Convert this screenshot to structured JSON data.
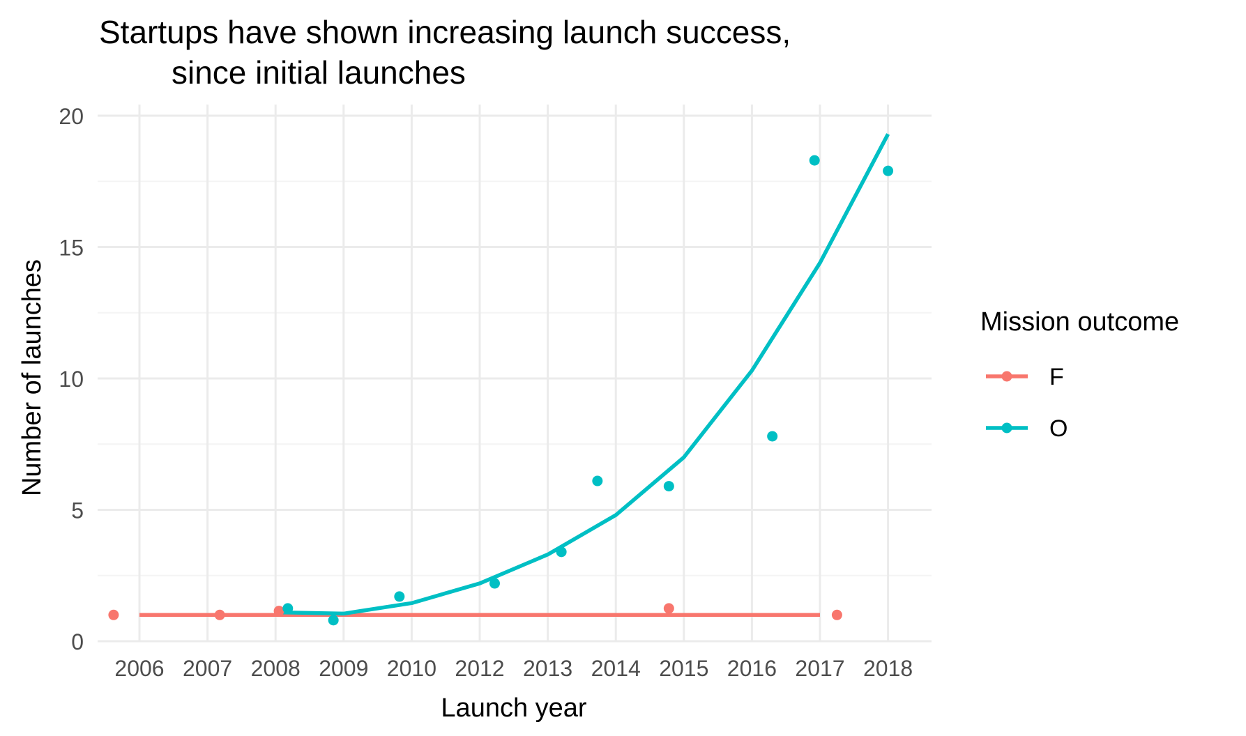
{
  "colors": {
    "background": "#ffffff",
    "grid_major": "#ebebeb",
    "grid_minor": "#f4f4f4",
    "tick_text": "#4d4d4d",
    "text": "#000000"
  },
  "chart_data": {
    "type": "scatter",
    "title_lines": [
      "Startups have shown increasing launch success,",
      "since initial launches"
    ],
    "xlabel": "Launch year",
    "ylabel": "Number of launches",
    "x_categories": [
      "2006",
      "2007",
      "2008",
      "2009",
      "2010",
      "2012",
      "2013",
      "2014",
      "2015",
      "2016",
      "2017",
      "2018"
    ],
    "ylim": [
      0,
      20
    ],
    "y_ticks": [
      0,
      5,
      10,
      15,
      20
    ],
    "grid": true,
    "legend": {
      "title": "Mission outcome",
      "position": "right"
    },
    "series": [
      {
        "name": "F",
        "color": "#F8766D",
        "points": [
          {
            "x": "2006",
            "jitter": -0.38,
            "y": 1.0
          },
          {
            "x": "2007",
            "jitter": 0.18,
            "y": 1.0
          },
          {
            "x": "2008",
            "jitter": 0.05,
            "y": 1.15
          },
          {
            "x": "2015",
            "jitter": -0.22,
            "y": 1.25
          },
          {
            "x": "2017",
            "jitter": 0.25,
            "y": 1.0
          }
        ],
        "trend": [
          {
            "x": "2006",
            "y": 1.0
          },
          {
            "x": "2017",
            "y": 1.0
          }
        ]
      },
      {
        "name": "O",
        "color": "#00BFC4",
        "points": [
          {
            "x": "2008",
            "jitter": 0.18,
            "y": 1.25
          },
          {
            "x": "2009",
            "jitter": -0.15,
            "y": 0.8
          },
          {
            "x": "2010",
            "jitter": -0.18,
            "y": 1.7
          },
          {
            "x": "2012",
            "jitter": 0.22,
            "y": 2.2
          },
          {
            "x": "2013",
            "jitter": 0.2,
            "y": 3.4
          },
          {
            "x": "2014",
            "jitter": -0.27,
            "y": 6.1
          },
          {
            "x": "2015",
            "jitter": -0.22,
            "y": 5.9
          },
          {
            "x": "2016",
            "jitter": 0.3,
            "y": 7.8
          },
          {
            "x": "2017",
            "jitter": -0.08,
            "y": 18.3
          },
          {
            "x": "2018",
            "jitter": 0.0,
            "y": 17.9
          }
        ],
        "trend": [
          {
            "x": "2008",
            "y": 1.1
          },
          {
            "x": "2009",
            "y": 1.05
          },
          {
            "x": "2010",
            "y": 1.45
          },
          {
            "x": "2012",
            "y": 2.2
          },
          {
            "x": "2013",
            "y": 3.3
          },
          {
            "x": "2014",
            "y": 4.8
          },
          {
            "x": "2015",
            "y": 7.0
          },
          {
            "x": "2016",
            "y": 10.3
          },
          {
            "x": "2017",
            "y": 14.4
          },
          {
            "x": "2018",
            "y": 19.3
          }
        ]
      }
    ]
  }
}
